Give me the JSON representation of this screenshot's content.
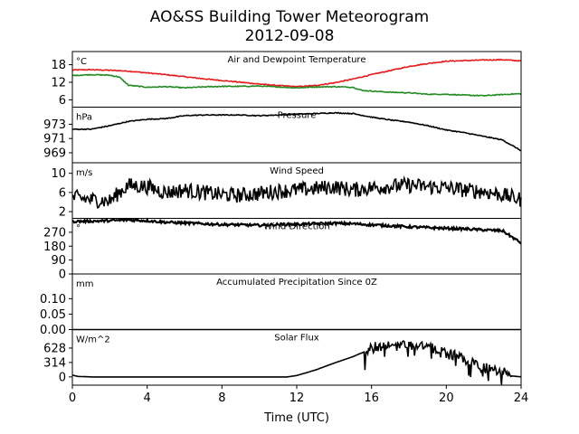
{
  "figure": {
    "title": "AO&SS Building Tower Meteorogram",
    "subtitle": "2012-09-08",
    "xlabel": "Time (UTC)"
  },
  "chart_data": [
    {
      "type": "line",
      "title": "Air and Dewpoint Temperature",
      "unit": "°C",
      "xlim": [
        0,
        24
      ],
      "ylim": [
        3.5,
        22.5
      ],
      "yticks": [
        6,
        12,
        18
      ],
      "series": [
        {
          "color": "#e41a1c",
          "points": [
            [
              0,
              16.2
            ],
            [
              1,
              16.3
            ],
            [
              2,
              16.1
            ],
            [
              3,
              15.8
            ],
            [
              4,
              15.2
            ],
            [
              5,
              14.6
            ],
            [
              6,
              13.9
            ],
            [
              7,
              13.2
            ],
            [
              8,
              12.6
            ],
            [
              9,
              12.0
            ],
            [
              10,
              11.4
            ],
            [
              11,
              10.9
            ],
            [
              12,
              10.5
            ],
            [
              13,
              10.9
            ],
            [
              14,
              11.8
            ],
            [
              15,
              13.1
            ],
            [
              16,
              14.6
            ],
            [
              17,
              16.0
            ],
            [
              18,
              17.4
            ],
            [
              19,
              18.4
            ],
            [
              20,
              19.2
            ],
            [
              21,
              19.4
            ],
            [
              22,
              19.6
            ],
            [
              23,
              19.7
            ],
            [
              24,
              19.3
            ]
          ]
        },
        {
          "color": "#228b22",
          "points": [
            [
              0,
              14.3
            ],
            [
              1,
              14.6
            ],
            [
              2,
              14.4
            ],
            [
              2.5,
              13.8
            ],
            [
              3,
              11.0
            ],
            [
              4,
              10.3
            ],
            [
              5,
              10.5
            ],
            [
              6,
              10.1
            ],
            [
              7,
              10.4
            ],
            [
              8,
              10.6
            ],
            [
              9,
              10.6
            ],
            [
              10,
              10.7
            ],
            [
              11,
              10.4
            ],
            [
              12,
              10.1
            ],
            [
              13,
              10.4
            ],
            [
              14,
              10.5
            ],
            [
              15,
              10.3
            ],
            [
              15.5,
              9.2
            ],
            [
              16,
              9.0
            ],
            [
              17,
              8.6
            ],
            [
              18,
              8.4
            ],
            [
              19,
              7.9
            ],
            [
              20,
              7.9
            ],
            [
              21,
              7.6
            ],
            [
              22,
              7.4
            ],
            [
              23,
              7.8
            ],
            [
              24,
              8.1
            ]
          ]
        }
      ]
    },
    {
      "type": "line",
      "title": "Pressure",
      "unit": "hPa",
      "xlim": [
        0,
        24
      ],
      "ylim": [
        967.6,
        975.4
      ],
      "yticks": [
        969,
        971,
        973
      ],
      "series": [
        {
          "color": "#000000",
          "points": [
            [
              0,
              972.3
            ],
            [
              1,
              972.3
            ],
            [
              2,
              972.8
            ],
            [
              3,
              973.4
            ],
            [
              4,
              973.7
            ],
            [
              5,
              973.8
            ],
            [
              6,
              974.2
            ],
            [
              7,
              974.3
            ],
            [
              8,
              974.3
            ],
            [
              9,
              974.3
            ],
            [
              10,
              974.2
            ],
            [
              11,
              974.3
            ],
            [
              12,
              974.4
            ],
            [
              13,
              974.5
            ],
            [
              14,
              974.6
            ],
            [
              15,
              974.5
            ],
            [
              16,
              974.0
            ],
            [
              17,
              973.6
            ],
            [
              18,
              973.3
            ],
            [
              19,
              972.8
            ],
            [
              20,
              972.2
            ],
            [
              21,
              971.8
            ],
            [
              22,
              971.3
            ],
            [
              23,
              970.8
            ],
            [
              24,
              969.3
            ]
          ]
        }
      ]
    },
    {
      "type": "line",
      "title": "Wind Speed",
      "unit": "m/s",
      "xlim": [
        0,
        24
      ],
      "ylim": [
        0.6,
        12.2
      ],
      "yticks": [
        2,
        6,
        10
      ],
      "series": [
        {
          "color": "#000000",
          "points": [
            [
              0,
              5.0
            ],
            [
              1,
              4.5
            ],
            [
              2,
              4.2
            ],
            [
              2.5,
              6.0
            ],
            [
              3,
              7.5
            ],
            [
              4,
              7.2
            ],
            [
              5,
              6.0
            ],
            [
              6,
              6.5
            ],
            [
              7,
              6.0
            ],
            [
              8,
              5.5
            ],
            [
              9,
              5.4
            ],
            [
              10,
              5.8
            ],
            [
              11,
              6.3
            ],
            [
              12,
              6.5
            ],
            [
              13,
              6.8
            ],
            [
              14,
              7.2
            ],
            [
              15,
              6.5
            ],
            [
              16,
              7.0
            ],
            [
              17,
              7.3
            ],
            [
              18,
              7.5
            ],
            [
              19,
              7.2
            ],
            [
              20,
              7.0
            ],
            [
              21,
              6.5
            ],
            [
              22,
              6.2
            ],
            [
              23,
              5.5
            ],
            [
              24,
              4.5
            ]
          ]
        }
      ]
    },
    {
      "type": "line",
      "title": "Wind Direction",
      "unit": "°",
      "xlim": [
        0,
        24
      ],
      "ylim": [
        0,
        360
      ],
      "yticks": [
        0,
        90,
        180,
        270
      ],
      "series": [
        {
          "color": "#000000",
          "points": [
            [
              0,
              340
            ],
            [
              1,
              342
            ],
            [
              2,
              345
            ],
            [
              3,
              350
            ],
            [
              4,
              345
            ],
            [
              5,
              335
            ],
            [
              6,
              330
            ],
            [
              7,
              325
            ],
            [
              8,
              320
            ],
            [
              9,
              318
            ],
            [
              10,
              315
            ],
            [
              11,
              320
            ],
            [
              12,
              322
            ],
            [
              13,
              325
            ],
            [
              14,
              328
            ],
            [
              15,
              325
            ],
            [
              16,
              318
            ],
            [
              17,
              312
            ],
            [
              18,
              305
            ],
            [
              19,
              300
            ],
            [
              20,
              295
            ],
            [
              21,
              292
            ],
            [
              22,
              285
            ],
            [
              23,
              280
            ],
            [
              24,
              200
            ]
          ]
        }
      ]
    },
    {
      "type": "line",
      "title": "Accumulated Precipitation Since 0Z",
      "unit": "mm",
      "xlim": [
        0,
        24
      ],
      "ylim": [
        0,
        0.18
      ],
      "yticks": [
        0.0,
        0.05,
        0.1
      ],
      "series": [
        {
          "color": "#000000",
          "points": [
            [
              0,
              0
            ],
            [
              24,
              0
            ]
          ]
        }
      ]
    },
    {
      "type": "line",
      "title": "Solar Flux",
      "unit": "W/m^2",
      "xlim": [
        0,
        24
      ],
      "ylim": [
        -180,
        1030
      ],
      "yticks": [
        0,
        314,
        628
      ],
      "series": [
        {
          "color": "#000000",
          "points": [
            [
              0,
              40
            ],
            [
              0.3,
              10
            ],
            [
              1,
              0
            ],
            [
              4,
              0
            ],
            [
              8,
              0
            ],
            [
              11.5,
              0
            ],
            [
              12,
              30
            ],
            [
              13,
              150
            ],
            [
              14,
              300
            ],
            [
              15,
              440
            ],
            [
              15.7,
              560
            ],
            [
              16,
              620
            ],
            [
              17,
              690
            ],
            [
              18,
              710
            ],
            [
              18.5,
              720
            ],
            [
              19,
              650
            ],
            [
              20,
              520
            ],
            [
              21,
              380
            ],
            [
              22,
              200
            ],
            [
              23,
              80
            ],
            [
              23.5,
              20
            ],
            [
              24,
              0
            ]
          ]
        }
      ]
    }
  ]
}
